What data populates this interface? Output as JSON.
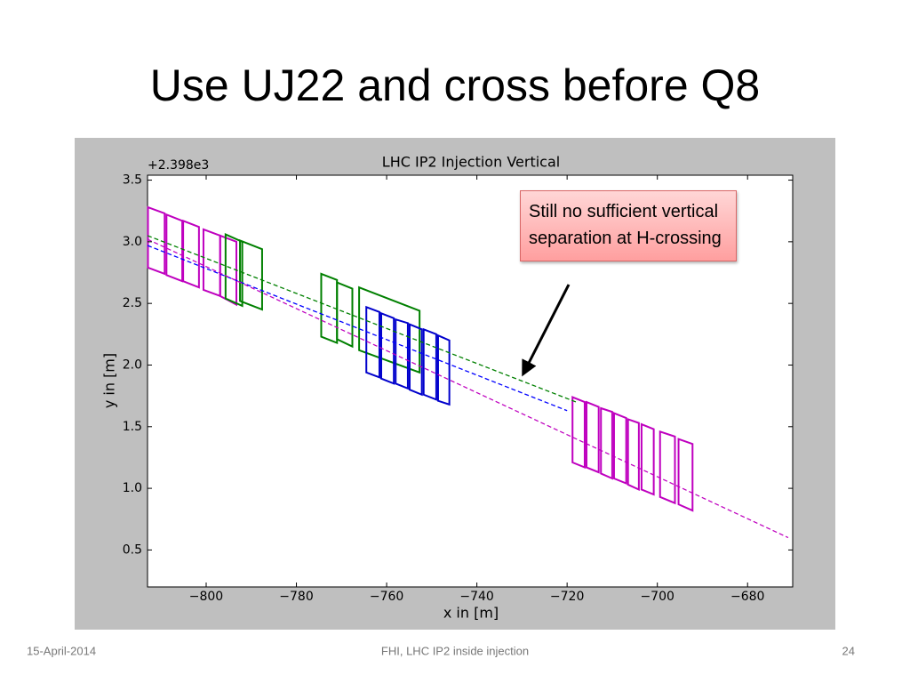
{
  "slide": {
    "title": "Use UJ22 and cross before Q8",
    "footer": {
      "date": "15-April-2014",
      "center": "FHI, LHC IP2 inside injection",
      "page": 24
    }
  },
  "chart_data": {
    "type": "line",
    "title": "LHC IP2 Injection Vertical",
    "xlabel": "x in [m]",
    "ylabel": "y in [m]",
    "y_offset": "+2.398e3",
    "annotation": "Still no sufficient vertical separation at H-crossing",
    "xlim": [
      -813,
      -670
    ],
    "ylim": [
      0.2,
      3.54
    ],
    "xticks": [
      {
        "value": -800,
        "label": "−800"
      },
      {
        "value": -780,
        "label": "−780"
      },
      {
        "value": -760,
        "label": "−760"
      },
      {
        "value": -740,
        "label": "−740"
      },
      {
        "value": -720,
        "label": "−720"
      },
      {
        "value": -700,
        "label": "−700"
      },
      {
        "value": -680,
        "label": "−680"
      }
    ],
    "yticks": [
      0.5,
      {
        "value": 1,
        "label": "1.0"
      },
      1.5,
      {
        "value": 2,
        "label": "2.0"
      },
      2.5,
      {
        "value": 3,
        "label": "3.0"
      },
      3.5
    ],
    "series": [
      {
        "color": "#008000",
        "x": [
          -813,
          -718
        ],
        "y": [
          3.05,
          1.7
        ]
      },
      {
        "color": "#0000ff",
        "x": [
          -813,
          -720
        ],
        "y": [
          2.97,
          1.63
        ]
      },
      {
        "color": "#bf00bf",
        "x": [
          -813,
          -671
        ],
        "y": [
          3.02,
          0.6
        ]
      }
    ],
    "boxes": [
      {
        "color": "#bf00bf",
        "x": [
          -812.9,
          -809.2
        ],
        "top": [
          3.28,
          3.23
        ],
        "bottom": [
          2.79,
          2.74
        ]
      },
      {
        "color": "#bf00bf",
        "x": [
          -808.8,
          -805.3
        ],
        "top": [
          3.22,
          3.17
        ],
        "bottom": [
          2.73,
          2.68
        ]
      },
      {
        "color": "#bf00bf",
        "x": [
          -805.1,
          -801.6
        ],
        "top": [
          3.17,
          3.12
        ],
        "bottom": [
          2.68,
          2.63
        ]
      },
      {
        "color": "#bf00bf",
        "x": [
          -800.6,
          -796.9
        ],
        "top": [
          3.1,
          3.05
        ],
        "bottom": [
          2.61,
          2.56
        ]
      },
      {
        "color": "#bf00bf",
        "x": [
          -796.9,
          -793.3
        ],
        "top": [
          3.05,
          3.0
        ],
        "bottom": [
          2.56,
          2.49
        ]
      },
      {
        "color": "#008000",
        "x": [
          -795.7,
          -792.0
        ],
        "top": [
          3.06,
          3.0
        ],
        "bottom": [
          2.54,
          2.48
        ]
      },
      {
        "color": "#008000",
        "x": [
          -792.5,
          -787.6
        ],
        "top": [
          3.01,
          2.94
        ],
        "bottom": [
          2.52,
          2.45
        ]
      },
      {
        "color": "#008000",
        "x": [
          -774.5,
          -771.0
        ],
        "top": [
          2.74,
          2.69
        ],
        "bottom": [
          2.23,
          2.18
        ]
      },
      {
        "color": "#008000",
        "x": [
          -771.0,
          -767.6
        ],
        "top": [
          2.67,
          2.62
        ],
        "bottom": [
          2.21,
          2.15
        ]
      },
      {
        "color": "#008000",
        "x": [
          -766.1,
          -752.7
        ],
        "top": [
          2.63,
          2.44
        ],
        "bottom": [
          2.12,
          1.94
        ]
      },
      {
        "color": "#0000cc",
        "x": [
          -764.5,
          -761.6
        ],
        "top": [
          2.47,
          2.43
        ],
        "bottom": [
          1.94,
          1.9
        ]
      },
      {
        "color": "#0000cc",
        "x": [
          -761.2,
          -758.4
        ],
        "top": [
          2.42,
          2.38
        ],
        "bottom": [
          1.89,
          1.85
        ]
      },
      {
        "color": "#0000cc",
        "x": [
          -758.0,
          -755.3
        ],
        "top": [
          2.37,
          2.34
        ],
        "bottom": [
          1.85,
          1.81
        ]
      },
      {
        "color": "#0000cc",
        "x": [
          -754.9,
          -752.2
        ],
        "top": [
          2.33,
          2.29
        ],
        "bottom": [
          1.8,
          1.76
        ]
      },
      {
        "color": "#0000cc",
        "x": [
          -751.8,
          -749.0
        ],
        "top": [
          2.29,
          2.25
        ],
        "bottom": [
          1.76,
          1.72
        ]
      },
      {
        "color": "#0000cc",
        "x": [
          -748.6,
          -746.1
        ],
        "top": [
          2.24,
          2.2
        ],
        "bottom": [
          1.71,
          1.68
        ]
      },
      {
        "color": "#bf00bf",
        "x": [
          -718.8,
          -716.1
        ],
        "top": [
          1.74,
          1.7
        ],
        "bottom": [
          1.21,
          1.17
        ]
      },
      {
        "color": "#bf00bf",
        "x": [
          -715.7,
          -713.0
        ],
        "top": [
          1.7,
          1.66
        ],
        "bottom": [
          1.17,
          1.13
        ]
      },
      {
        "color": "#bf00bf",
        "x": [
          -712.5,
          -710.0
        ],
        "top": [
          1.65,
          1.62
        ],
        "bottom": [
          1.12,
          1.08
        ]
      },
      {
        "color": "#bf00bf",
        "x": [
          -709.6,
          -706.9
        ],
        "top": [
          1.61,
          1.57
        ],
        "bottom": [
          1.08,
          1.04
        ]
      },
      {
        "color": "#bf00bf",
        "x": [
          -706.5,
          -704.1
        ],
        "top": [
          1.56,
          1.53
        ],
        "bottom": [
          1.03,
          0.99
        ]
      },
      {
        "color": "#bf00bf",
        "x": [
          -703.5,
          -700.8
        ],
        "top": [
          1.52,
          1.48
        ],
        "bottom": [
          0.99,
          0.95
        ]
      },
      {
        "color": "#bf00bf",
        "x": [
          -699.4,
          -696.1
        ],
        "top": [
          1.46,
          1.42
        ],
        "bottom": [
          0.93,
          0.88
        ]
      },
      {
        "color": "#bf00bf",
        "x": [
          -695.3,
          -692.2
        ],
        "top": [
          1.4,
          1.36
        ],
        "bottom": [
          0.87,
          0.82
        ]
      }
    ]
  }
}
